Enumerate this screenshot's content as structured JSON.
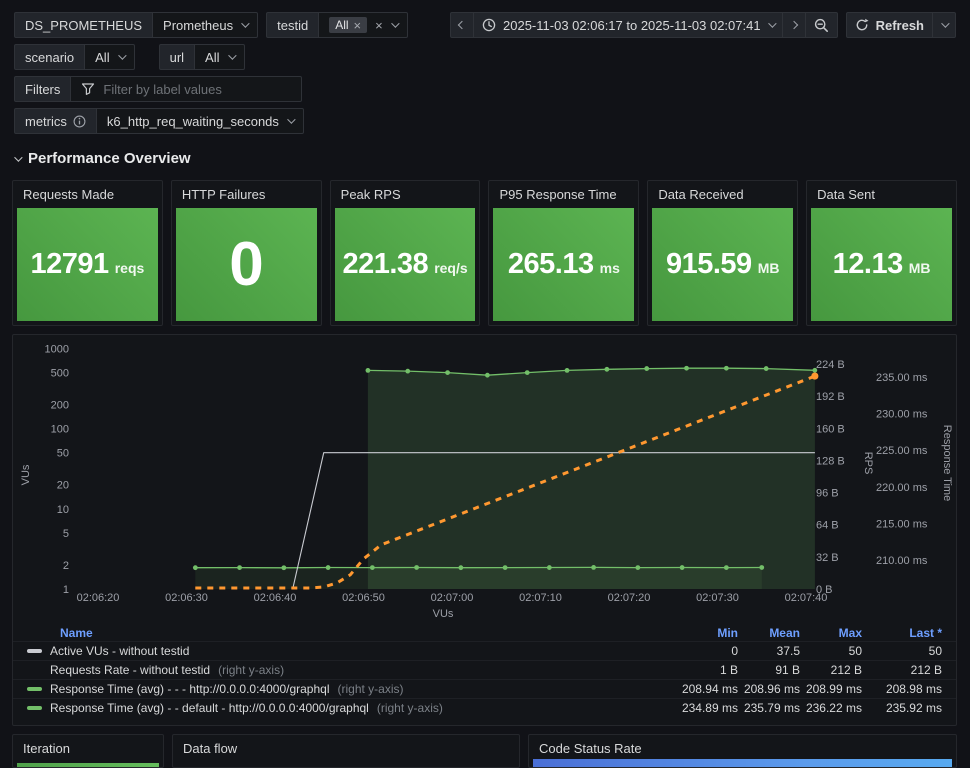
{
  "variables": {
    "ds": {
      "label": "DS_PROMETHEUS",
      "value": "Prometheus"
    },
    "testid": {
      "label": "testid",
      "selected": "All"
    },
    "scenario": {
      "label": "scenario",
      "value": "All"
    },
    "url": {
      "label": "url",
      "value": "All"
    },
    "filters": {
      "label": "Filters",
      "placeholder": "Filter by label values"
    },
    "metrics": {
      "label": "metrics",
      "value": "k6_http_req_waiting_seconds"
    }
  },
  "time_picker": {
    "range": "2025-11-03 02:06:17 to 2025-11-03 02:07:41",
    "refresh_label": "Refresh"
  },
  "section": {
    "title": "Performance Overview"
  },
  "stats": [
    {
      "title": "Requests Made",
      "value": "12791",
      "unit": "reqs"
    },
    {
      "title": "HTTP Failures",
      "value": "0",
      "unit": ""
    },
    {
      "title": "Peak RPS",
      "value": "221.38",
      "unit": "req/s"
    },
    {
      "title": "P95 Response Time",
      "value": "265.13",
      "unit": "ms"
    },
    {
      "title": "Data Received",
      "value": "915.59",
      "unit": "MB"
    },
    {
      "title": "Data Sent",
      "value": "12.13",
      "unit": "MB"
    }
  ],
  "colors": {
    "green": "#73BF69",
    "orange": "#FF9830",
    "white_line": "#C9CBD1",
    "link_blue": "#6E9FFF",
    "stat_gradient": [
      "#46983F",
      "#5CB452"
    ]
  },
  "chart_data": {
    "type": "line",
    "x_axis": {
      "label": "VUs",
      "range": [
        "02:06:17",
        "02:07:41"
      ],
      "ticks": [
        [
          20,
          "02:06:20"
        ],
        [
          30,
          "02:06:30"
        ],
        [
          40,
          "02:06:40"
        ],
        [
          50,
          "02:06:50"
        ],
        [
          60,
          "02:07:00"
        ],
        [
          70,
          "02:07:10"
        ],
        [
          80,
          "02:07:20"
        ],
        [
          90,
          "02:07:30"
        ],
        [
          100,
          "02:07:40"
        ]
      ]
    },
    "y_axes": {
      "vus": {
        "label": "VUs",
        "side": "left",
        "scale": "log",
        "ticks": [
          [
            1000,
            "1000"
          ],
          [
            500,
            "500"
          ],
          [
            200,
            "200"
          ],
          [
            100,
            "100"
          ],
          [
            50,
            "50"
          ],
          [
            20,
            "20"
          ],
          [
            10,
            "10"
          ],
          [
            5,
            "5"
          ],
          [
            2,
            "2"
          ],
          [
            1,
            "1"
          ]
        ]
      },
      "rps": {
        "label": "RPS",
        "side": "right",
        "ticks": [
          [
            224,
            "224 B"
          ],
          [
            192,
            "192 B"
          ],
          [
            160,
            "160 B"
          ],
          [
            128,
            "128 B"
          ],
          [
            96,
            "96 B"
          ],
          [
            64,
            "64 B"
          ],
          [
            32,
            "32 B"
          ],
          [
            0,
            "0 B"
          ]
        ]
      },
      "rt": {
        "label": "Response Time",
        "side": "right",
        "ticks": [
          [
            235,
            "235.00 ms"
          ],
          [
            230,
            "230.00 ms"
          ],
          [
            225,
            "225.00 ms"
          ],
          [
            220,
            "220.00 ms"
          ],
          [
            215,
            "215.00 ms"
          ],
          [
            210,
            "210.00 ms"
          ]
        ]
      }
    },
    "series": [
      {
        "id": "response-time-graphql",
        "name": "Response Time (avg) - - - http://0.0.0.0:4000/graphql",
        "axis": "rt",
        "color": "#73BF69",
        "style": "solid",
        "width": 1.3,
        "markers": true,
        "fill_opacity": 0.09,
        "points": [
          [
            31,
            208.95
          ],
          [
            36,
            208.96
          ],
          [
            41,
            208.94
          ],
          [
            46,
            208.97
          ],
          [
            51,
            208.96
          ],
          [
            56,
            208.98
          ],
          [
            61,
            208.95
          ],
          [
            66,
            208.96
          ],
          [
            71,
            208.97
          ],
          [
            76,
            208.99
          ],
          [
            81,
            208.96
          ],
          [
            86,
            208.97
          ],
          [
            91,
            208.96
          ],
          [
            95,
            208.98
          ]
        ]
      },
      {
        "id": "response-time-default-graphql",
        "name": "Response Time (avg) - - default - http://0.0.0.0:4000/graphql",
        "axis": "rt",
        "color": "#73BF69",
        "style": "solid",
        "width": 1.3,
        "markers": true,
        "fill_opacity": 0.17,
        "points": [
          [
            50.5,
            235.9
          ],
          [
            55,
            235.8
          ],
          [
            59.5,
            235.6
          ],
          [
            64,
            235.25
          ],
          [
            68.5,
            235.6
          ],
          [
            73,
            235.9
          ],
          [
            77.5,
            236.05
          ],
          [
            82,
            236.15
          ],
          [
            86.5,
            236.2
          ],
          [
            91,
            236.2
          ],
          [
            95.5,
            236.15
          ],
          [
            101,
            235.92
          ]
        ]
      },
      {
        "id": "active-vus",
        "name": "Active VUs - without testid",
        "axis": "vus",
        "color": "#C9CBD1",
        "style": "solid",
        "width": 1.1,
        "markers": false,
        "fill_opacity": 0,
        "points": [
          [
            42,
            1
          ],
          [
            45.5,
            50
          ],
          [
            101,
            50
          ]
        ]
      },
      {
        "id": "requests-rate",
        "name": "Requests Rate - without testid",
        "axis": "rps",
        "color": "#FF9830",
        "style": "dashed",
        "width": 3,
        "markers": false,
        "fill_opacity": 0,
        "end_dot": true,
        "points": [
          [
            31,
            1
          ],
          [
            44,
            1
          ],
          [
            45.5,
            2
          ],
          [
            47,
            6
          ],
          [
            48.5,
            14
          ],
          [
            50,
            30
          ],
          [
            52,
            44
          ],
          [
            101,
            212
          ]
        ]
      }
    ]
  },
  "legend_table": {
    "headers": {
      "name": "Name",
      "min": "Min",
      "mean": "Mean",
      "max": "Max",
      "last": "Last *"
    },
    "rows": [
      {
        "swatch": "solid",
        "color": "#C9CBD1",
        "name": "Active VUs - without testid",
        "suffix": "",
        "min": "0",
        "mean": "37.5",
        "max": "50",
        "last": "50"
      },
      {
        "swatch": "dashed",
        "color": "#FF9830",
        "name": "Requests Rate - without testid",
        "suffix": "(right y-axis)",
        "min": "1 B",
        "mean": "91 B",
        "max": "212 B",
        "last": "212 B"
      },
      {
        "swatch": "solid",
        "color": "#73BF69",
        "name": "Response Time (avg) - - - http://0.0.0.0:4000/graphql",
        "suffix": "(right y-axis)",
        "min": "208.94 ms",
        "mean": "208.96 ms",
        "max": "208.99 ms",
        "last": "208.98 ms"
      },
      {
        "swatch": "solid",
        "color": "#73BF69",
        "name": "Response Time (avg) - - default - http://0.0.0.0:4000/graphql",
        "suffix": "(right y-axis)",
        "min": "234.89 ms",
        "mean": "235.79 ms",
        "max": "236.22 ms",
        "last": "235.92 ms"
      }
    ]
  },
  "bottom_panels": [
    {
      "title": "Iteration"
    },
    {
      "title": "Data flow"
    },
    {
      "title": "Code Status Rate"
    }
  ]
}
